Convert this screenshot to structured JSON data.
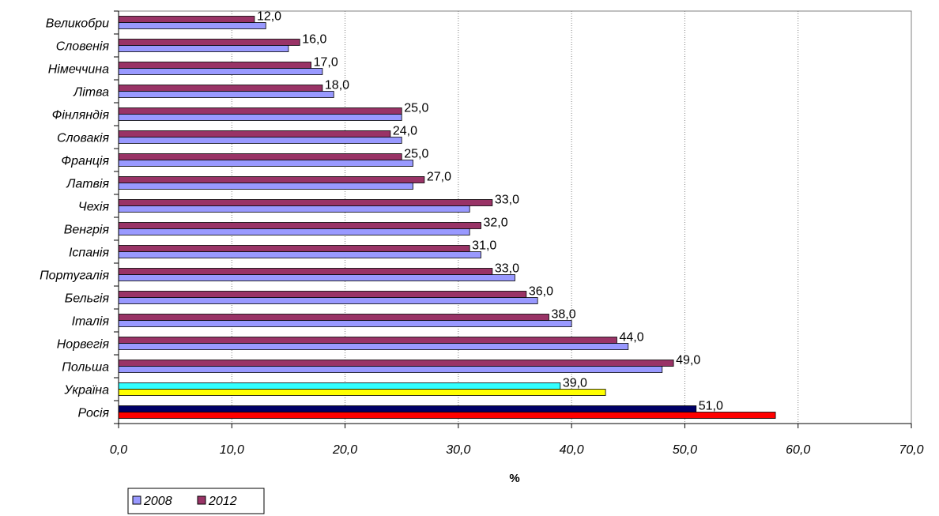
{
  "chart_data": {
    "type": "bar",
    "orientation": "horizontal",
    "categories": [
      "Великобри",
      "Словенія",
      "Німеччина",
      "Літва",
      "Фінляндія",
      "Словакія",
      "Франція",
      "Латвія",
      "Чехія",
      "Венгрія",
      "Іспанія",
      "Португалія",
      "Бельгія",
      "Італія",
      "Норвегія",
      "Польша",
      "Україна",
      "Росія"
    ],
    "series": [
      {
        "name": "2008",
        "values": [
          13,
          15,
          18,
          19,
          25,
          25,
          26,
          26,
          31,
          31,
          32,
          35,
          37,
          40,
          45,
          48,
          43,
          58
        ]
      },
      {
        "name": "2012",
        "values": [
          12,
          16,
          17,
          18,
          25,
          24,
          25,
          27,
          33,
          32,
          31,
          33,
          36,
          38,
          44,
          49,
          39,
          51
        ]
      }
    ],
    "data_labels": [
      "12,0",
      "16,0",
      "17,0",
      "18,0",
      "25,0",
      "24,0",
      "25,0",
      "27,0",
      "33,0",
      "32,0",
      "31,0",
      "33,0",
      "36,0",
      "38,0",
      "44,0",
      "49,0",
      "39,0",
      "51,0"
    ],
    "x_ticks": [
      "0,0",
      "10,0",
      "20,0",
      "30,0",
      "40,0",
      "50,0",
      "60,0",
      "70,0"
    ],
    "xlim": [
      0,
      70
    ],
    "xlabel": "%",
    "title": "",
    "grid": "vertical-dotted",
    "legend": {
      "placement": "bottom-left",
      "entries": [
        "2008",
        "2012"
      ]
    },
    "colors": {
      "s2008": "#9999ff",
      "s2012": "#993366",
      "ukraine2008": "#ffff00",
      "ukraine2012": "#33ffff",
      "russia2008": "#ff0000",
      "russia2012": "#000066"
    }
  }
}
